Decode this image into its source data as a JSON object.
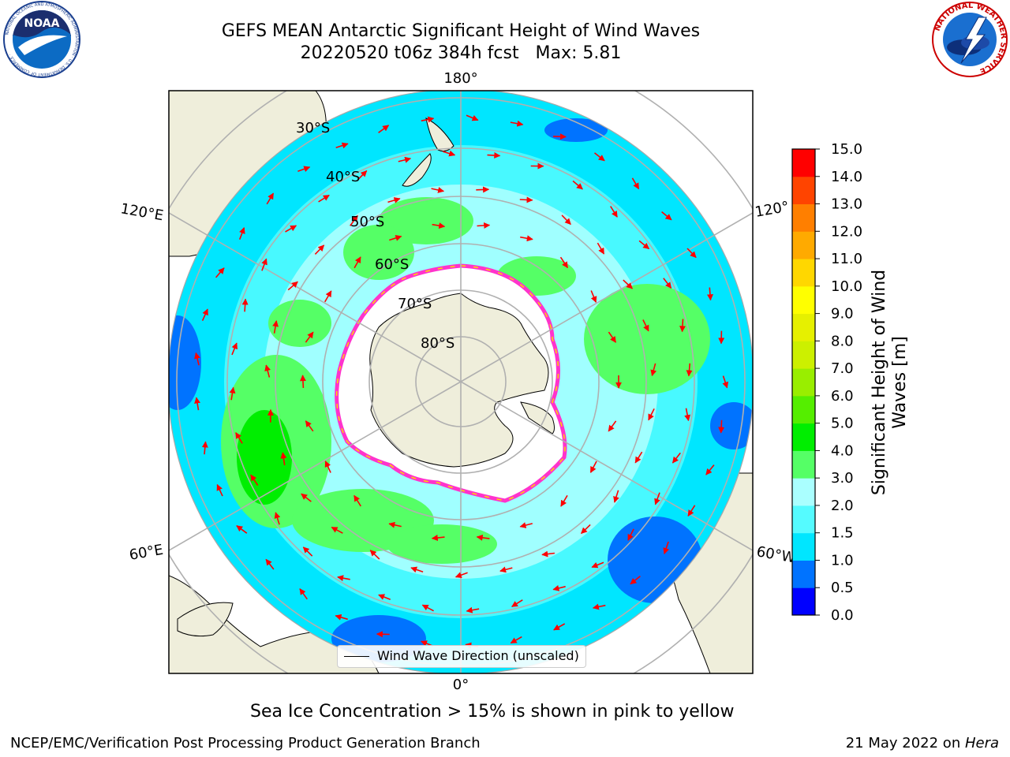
{
  "title": {
    "line1": "GEFS MEAN Antarctic Significant Height of Wind Waves",
    "line2": "20220520 t06z 384h fcst   Max: 5.81"
  },
  "logos": {
    "noaa": {
      "text": "NOAA",
      "ring_text": "NATIONAL OCEANIC AND ATMOSPHERIC ADMINISTRATION · U.S. DEPARTMENT OF COMMERCE ·"
    },
    "nws": {
      "ring_text": "NATIONAL WEATHER SERVICE"
    }
  },
  "map": {
    "projection": "south-polar-stereographic",
    "longitude_labels": {
      "top": "180°",
      "bottom": "0°",
      "upper_left": "120°E",
      "upper_right": "120°",
      "lower_left": "60°E",
      "lower_right": "60°W"
    },
    "latitude_labels": [
      "30°S",
      "40°S",
      "50°S",
      "60°S",
      "70°S",
      "80°S"
    ],
    "legend_label": "Wind Wave Direction (unscaled)",
    "colors": {
      "land": "#efeedb",
      "sea_ice": "#ffffff",
      "ice_edge_pink": "#ff33cc",
      "ice_edge_yellow": "#ffd700",
      "arrow": "#ff0000",
      "grid": "#b0b0b0"
    }
  },
  "colorbar": {
    "label_line1": "Significant Height of Wind",
    "label_line2": "Waves [m]",
    "ticks": [
      "0.0",
      "0.5",
      "1.0",
      "1.5",
      "2.0",
      "3.0",
      "4.0",
      "5.0",
      "6.0",
      "7.0",
      "8.0",
      "9.0",
      "10.0",
      "11.0",
      "12.0",
      "13.0",
      "14.0",
      "15.0"
    ],
    "colors": [
      "#0000ff",
      "#0073ff",
      "#00e6ff",
      "#55fbff",
      "#aaffff",
      "#55ff66",
      "#00ee00",
      "#55ee00",
      "#99ee00",
      "#ccf000",
      "#e6f000",
      "#ffff00",
      "#ffd700",
      "#ffaa00",
      "#ff7f00",
      "#ff4400",
      "#ff0000"
    ]
  },
  "subtitle": "Sea Ice Concentration > 15% is shown in pink to yellow",
  "footer": {
    "left": "NCEP/EMC/Verification Post Processing Product Generation Branch",
    "date": "21 May 2022 on ",
    "host": "Hera"
  }
}
